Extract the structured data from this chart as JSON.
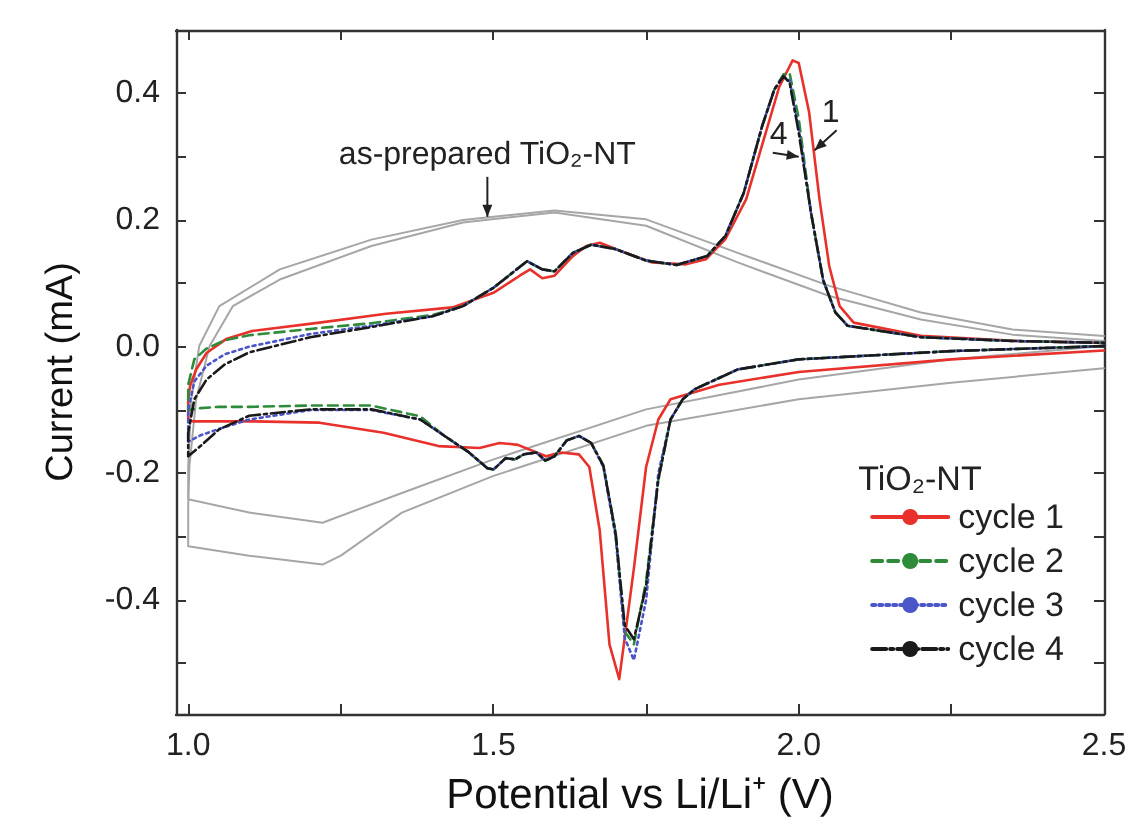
{
  "chart_data": {
    "type": "line",
    "xlabel": "Potential vs Li/Li⁺ (V)",
    "ylabel": "Current (mA)",
    "legend_title": "TiO₂-NT",
    "xlim": [
      0.98,
      2.5
    ],
    "ylim": [
      -0.58,
      0.5
    ],
    "xticks": [
      {
        "value": 1,
        "label": "1.0"
      },
      {
        "value": 1.25,
        "label": null
      },
      {
        "value": 1.5,
        "label": "1.5"
      },
      {
        "value": 1.75,
        "label": null
      },
      {
        "value": 2,
        "label": "2.0"
      },
      {
        "value": 2.25,
        "label": null
      },
      {
        "value": 2.5,
        "label": "2.5"
      }
    ],
    "yticks": [
      {
        "value": -0.5,
        "label": null
      },
      {
        "value": -0.4,
        "label": "-0.4"
      },
      {
        "value": -0.3,
        "label": null
      },
      {
        "value": -0.2,
        "label": "-0.2"
      },
      {
        "value": -0.1,
        "label": null
      },
      {
        "value": 0,
        "label": "0.0"
      },
      {
        "value": 0.1,
        "label": null
      },
      {
        "value": 0.2,
        "label": "0.2"
      },
      {
        "value": 0.3,
        "label": null
      },
      {
        "value": 0.4,
        "label": "0.4"
      }
    ],
    "grid": false,
    "legend": "bottom right",
    "annotations": [
      {
        "text": "as-prepared TiO₂-NT",
        "x": 1.49,
        "y": 0.205
      },
      {
        "text": "1",
        "x": 2.026,
        "y": 0.31
      },
      {
        "text": "4",
        "x": 2.0,
        "y": 0.3
      }
    ],
    "series": [
      {
        "color": "#a6a6a6",
        "line_style": "solid",
        "x": [
          2.5,
          2.25,
          2.0,
          1.75,
          1.5,
          1.35,
          1.25,
          1.22,
          1.1,
          1.0,
          1.0,
          1.002,
          1.013,
          1.035,
          1.073,
          1.15,
          1.3,
          1.45,
          1.6,
          1.75,
          1.9,
          2.05,
          2.2,
          2.35,
          2.5
        ],
        "values": [
          -0.034,
          -0.057,
          -0.083,
          -0.125,
          -0.204,
          -0.262,
          -0.33,
          -0.344,
          -0.33,
          -0.315,
          -0.25,
          -0.188,
          -0.083,
          0.001,
          0.064,
          0.106,
          0.159,
          0.196,
          0.212,
          0.191,
          0.133,
          0.08,
          0.043,
          0.019,
          0.009
        ]
      },
      {
        "color": "#a6a6a6",
        "line_style": "solid",
        "x": [
          2.5,
          2.25,
          2.0,
          1.75,
          1.5,
          1.35,
          1.22,
          1.1,
          1.0,
          1.0,
          1.005,
          1.018,
          1.051,
          1.15,
          1.3,
          1.45,
          1.6,
          1.75,
          1.9,
          2.05,
          2.2,
          2.35,
          2.5
        ],
        "values": [
          0.001,
          -0.02,
          -0.052,
          -0.099,
          -0.178,
          -0.231,
          -0.278,
          -0.262,
          -0.241,
          -0.188,
          -0.083,
          0.001,
          0.064,
          0.122,
          0.169,
          0.2,
          0.215,
          0.201,
          0.148,
          0.096,
          0.054,
          0.027,
          0.017
        ]
      },
      {
        "name": "cycle 1",
        "color": "#e8312b",
        "line_style": "solid",
        "x": [
          2.5,
          2.25,
          2.0,
          1.87,
          1.79,
          1.77,
          1.75,
          1.73,
          1.706,
          1.69,
          1.674,
          1.657,
          1.64,
          1.61,
          1.586,
          1.54,
          1.51,
          1.477,
          1.41,
          1.32,
          1.215,
          1.106,
          1.008,
          1.0,
          1.0,
          1.003,
          1.013,
          1.03,
          1.062,
          1.106,
          1.215,
          1.324,
          1.433,
          1.5,
          1.543,
          1.56,
          1.58,
          1.6,
          1.63,
          1.652,
          1.674,
          1.717,
          1.76,
          1.815,
          1.848,
          1.88,
          1.914,
          1.946,
          1.968,
          1.99,
          2.0,
          2.017,
          2.034,
          2.05,
          2.067,
          2.09,
          2.2,
          2.36,
          2.5
        ],
        "values": [
          -0.006,
          -0.02,
          -0.04,
          -0.06,
          -0.083,
          -0.115,
          -0.19,
          -0.35,
          -0.525,
          -0.47,
          -0.29,
          -0.19,
          -0.17,
          -0.167,
          -0.173,
          -0.155,
          -0.152,
          -0.16,
          -0.157,
          -0.136,
          -0.12,
          -0.118,
          -0.118,
          -0.115,
          -0.083,
          -0.062,
          -0.036,
          -0.01,
          0.012,
          0.025,
          0.038,
          0.052,
          0.062,
          0.085,
          0.112,
          0.122,
          0.108,
          0.112,
          0.143,
          0.159,
          0.164,
          0.148,
          0.133,
          0.13,
          0.138,
          0.17,
          0.233,
          0.338,
          0.41,
          0.452,
          0.448,
          0.37,
          0.233,
          0.127,
          0.064,
          0.038,
          0.017,
          0.009,
          0.006
        ]
      },
      {
        "name": "cycle 2",
        "color": "#2e8b3a",
        "line_style": "dashed",
        "x": [
          2.5,
          2.25,
          2.0,
          1.9,
          1.83,
          1.81,
          1.79,
          1.77,
          1.75,
          1.73,
          1.715,
          1.7,
          1.68,
          1.66,
          1.64,
          1.62,
          1.6,
          1.585,
          1.57,
          1.55,
          1.535,
          1.52,
          1.5,
          1.49,
          1.46,
          1.42,
          1.38,
          1.3,
          1.2,
          1.1,
          1.05,
          1.02,
          1.0,
          1.0,
          1.01,
          1.03,
          1.06,
          1.1,
          1.2,
          1.3,
          1.4,
          1.45,
          1.5,
          1.555,
          1.58,
          1.6,
          1.63,
          1.66,
          1.7,
          1.75,
          1.8,
          1.85,
          1.88,
          1.91,
          1.94,
          1.96,
          1.975,
          1.985,
          2.0,
          2.02,
          2.04,
          2.06,
          2.08,
          2.2,
          2.35,
          2.5
        ],
        "values": [
          0.001,
          -0.007,
          -0.02,
          -0.036,
          -0.067,
          -0.083,
          -0.115,
          -0.21,
          -0.37,
          -0.47,
          -0.45,
          -0.294,
          -0.188,
          -0.152,
          -0.141,
          -0.148,
          -0.173,
          -0.18,
          -0.167,
          -0.17,
          -0.178,
          -0.176,
          -0.194,
          -0.192,
          -0.167,
          -0.141,
          -0.11,
          -0.093,
          -0.093,
          -0.095,
          -0.095,
          -0.097,
          -0.1,
          -0.06,
          -0.02,
          -0.003,
          0.01,
          0.018,
          0.028,
          0.037,
          0.05,
          0.064,
          0.093,
          0.135,
          0.122,
          0.119,
          0.148,
          0.161,
          0.154,
          0.136,
          0.129,
          0.143,
          0.175,
          0.243,
          0.348,
          0.406,
          0.43,
          0.432,
          0.36,
          0.212,
          0.105,
          0.054,
          0.033,
          0.015,
          0.009,
          0.006
        ]
      },
      {
        "name": "cycle 3",
        "color": "#4a55c8",
        "line_style": "dotted",
        "x": [
          2.5,
          2.25,
          2.0,
          1.9,
          1.83,
          1.81,
          1.79,
          1.77,
          1.75,
          1.73,
          1.715,
          1.7,
          1.68,
          1.66,
          1.64,
          1.62,
          1.6,
          1.585,
          1.57,
          1.55,
          1.535,
          1.52,
          1.5,
          1.49,
          1.46,
          1.42,
          1.38,
          1.3,
          1.2,
          1.1,
          1.05,
          1.02,
          1.0,
          1.0,
          1.01,
          1.03,
          1.06,
          1.1,
          1.2,
          1.3,
          1.4,
          1.45,
          1.5,
          1.555,
          1.58,
          1.6,
          1.63,
          1.66,
          1.7,
          1.75,
          1.8,
          1.85,
          1.88,
          1.91,
          1.94,
          1.96,
          1.975,
          1.985,
          2.0,
          2.02,
          2.04,
          2.06,
          2.08,
          2.2,
          2.35,
          2.5
        ],
        "values": [
          0.001,
          -0.007,
          -0.02,
          -0.036,
          -0.067,
          -0.083,
          -0.115,
          -0.2,
          -0.4,
          -0.495,
          -0.46,
          -0.3,
          -0.19,
          -0.152,
          -0.141,
          -0.148,
          -0.173,
          -0.18,
          -0.167,
          -0.17,
          -0.178,
          -0.176,
          -0.194,
          -0.192,
          -0.167,
          -0.141,
          -0.115,
          -0.1,
          -0.1,
          -0.115,
          -0.13,
          -0.14,
          -0.15,
          -0.1,
          -0.055,
          -0.03,
          -0.012,
          0.0,
          0.02,
          0.033,
          0.048,
          0.064,
          0.093,
          0.135,
          0.122,
          0.119,
          0.148,
          0.161,
          0.154,
          0.136,
          0.129,
          0.143,
          0.175,
          0.243,
          0.348,
          0.406,
          0.427,
          0.42,
          0.345,
          0.212,
          0.105,
          0.054,
          0.033,
          0.015,
          0.009,
          0.006
        ]
      },
      {
        "name": "cycle 4",
        "color": "#1a1a1a",
        "line_style": "dashdot",
        "x": [
          2.5,
          2.25,
          2.0,
          1.9,
          1.83,
          1.81,
          1.79,
          1.77,
          1.75,
          1.73,
          1.715,
          1.7,
          1.68,
          1.66,
          1.64,
          1.62,
          1.6,
          1.585,
          1.57,
          1.55,
          1.535,
          1.52,
          1.5,
          1.49,
          1.46,
          1.42,
          1.38,
          1.3,
          1.2,
          1.1,
          1.05,
          1.02,
          1.0,
          1.0,
          1.01,
          1.03,
          1.06,
          1.1,
          1.2,
          1.3,
          1.4,
          1.45,
          1.5,
          1.555,
          1.58,
          1.6,
          1.63,
          1.66,
          1.7,
          1.75,
          1.8,
          1.85,
          1.88,
          1.91,
          1.94,
          1.96,
          1.975,
          1.985,
          2.0,
          2.02,
          2.04,
          2.06,
          2.08,
          2.2,
          2.35,
          2.5
        ],
        "values": [
          0.001,
          -0.007,
          -0.02,
          -0.036,
          -0.067,
          -0.083,
          -0.115,
          -0.21,
          -0.378,
          -0.462,
          -0.44,
          -0.294,
          -0.188,
          -0.152,
          -0.141,
          -0.148,
          -0.173,
          -0.18,
          -0.167,
          -0.17,
          -0.178,
          -0.176,
          -0.194,
          -0.192,
          -0.167,
          -0.141,
          -0.115,
          -0.099,
          -0.099,
          -0.109,
          -0.131,
          -0.157,
          -0.173,
          -0.136,
          -0.083,
          -0.052,
          -0.028,
          -0.009,
          0.015,
          0.031,
          0.048,
          0.064,
          0.093,
          0.135,
          0.122,
          0.119,
          0.148,
          0.161,
          0.154,
          0.136,
          0.129,
          0.143,
          0.175,
          0.243,
          0.348,
          0.406,
          0.427,
          0.417,
          0.338,
          0.212,
          0.105,
          0.054,
          0.033,
          0.015,
          0.009,
          0.006
        ]
      }
    ]
  }
}
